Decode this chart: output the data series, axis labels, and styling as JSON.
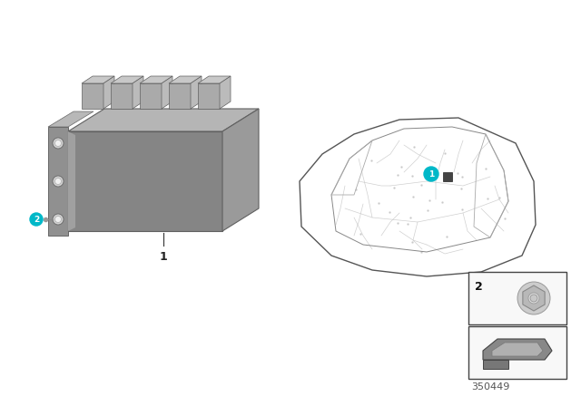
{
  "bg_color": "#ffffff",
  "page_number": "350449",
  "teal_color": "#00b8c8",
  "dark_color": "#222222",
  "ecu": {
    "front_color": "#858585",
    "right_color": "#9a9a9a",
    "top_color": "#b5b5b5",
    "edge_color": "#606060",
    "connector_color": "#aaaaaa",
    "connector_top": "#c8c8c8",
    "bracket_color": "#909090",
    "bracket_edge": "#666666"
  },
  "car": {
    "body_color": "none",
    "edge_color": "#555555",
    "wire_color": "#bbbbbb"
  },
  "inset": {
    "border_color": "#444444",
    "bg_color": "#f8f8f8",
    "nut_color": "#c0c0c0",
    "bracket_color": "#555555"
  }
}
